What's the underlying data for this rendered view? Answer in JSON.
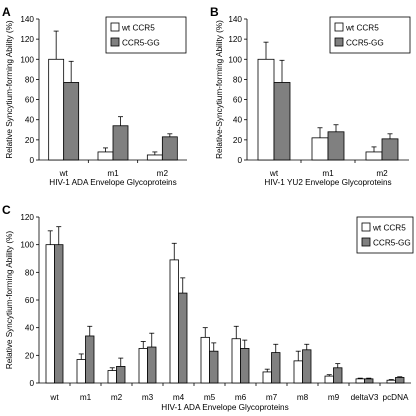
{
  "chart_data": [
    {
      "panel": "A",
      "type": "bar",
      "xlabel": "HIV-1 ADA Envelope Glycoproteins",
      "ylabel": "Relative Syncytium-forming Ability (%)",
      "ylim": [
        0,
        140
      ],
      "yticks": [
        0,
        20,
        40,
        60,
        80,
        100,
        120,
        140
      ],
      "legend_position": "top-right",
      "grid": false,
      "categories": [
        "wt",
        "m1",
        "m2"
      ],
      "series": [
        {
          "name": "wt CCR5",
          "color": "#ffffff",
          "values": [
            100,
            8,
            5
          ],
          "errors": [
            28,
            4,
            3
          ]
        },
        {
          "name": "CCR5-GG",
          "color": "#808080",
          "values": [
            77,
            34,
            23
          ],
          "errors": [
            21,
            9,
            3
          ]
        }
      ]
    },
    {
      "panel": "B",
      "type": "bar",
      "xlabel": "HIV-1 YU2 Envelope Glycoproteins",
      "ylabel": "Relative-Syncytium-forming Ability (%)",
      "ylim": [
        0,
        140
      ],
      "yticks": [
        0,
        20,
        40,
        60,
        80,
        100,
        120,
        140
      ],
      "legend_position": "top-right",
      "grid": false,
      "categories": [
        "wt",
        "m1",
        "m2"
      ],
      "series": [
        {
          "name": "wt CCR5",
          "color": "#ffffff",
          "values": [
            100,
            22,
            8
          ],
          "errors": [
            17,
            10,
            5
          ]
        },
        {
          "name": "CCR5-GG",
          "color": "#808080",
          "values": [
            77,
            28,
            21
          ],
          "errors": [
            22,
            7,
            5
          ]
        }
      ]
    },
    {
      "panel": "C",
      "type": "bar",
      "xlabel": "HIV-1 ADA Envelope Glycoproteins",
      "ylabel": "Relative Syncytium-forming Ability (%)",
      "ylim": [
        0,
        120
      ],
      "yticks": [
        0,
        20,
        40,
        60,
        80,
        100,
        120
      ],
      "legend_position": "top-right",
      "grid": false,
      "categories": [
        "wt",
        "m1",
        "m2",
        "m3",
        "m4",
        "m5",
        "m6",
        "m7",
        "m8",
        "m9",
        "deltaV3",
        "pcDNA"
      ],
      "series": [
        {
          "name": "wt CCR5",
          "color": "#ffffff",
          "values": [
            100,
            17,
            9,
            25,
            89,
            33,
            32,
            8,
            16,
            5,
            3,
            2
          ],
          "errors": [
            10,
            4,
            2,
            5,
            12,
            7,
            9,
            2,
            7,
            1,
            0.5,
            0.5
          ]
        },
        {
          "name": "CCR5-GG",
          "color": "#808080",
          "values": [
            100,
            34,
            12,
            26,
            65,
            23,
            25,
            22,
            24,
            11,
            3,
            4
          ],
          "errors": [
            13,
            7,
            6,
            10,
            11,
            6,
            6,
            6,
            4,
            3,
            0.5,
            0.5
          ]
        }
      ]
    }
  ]
}
